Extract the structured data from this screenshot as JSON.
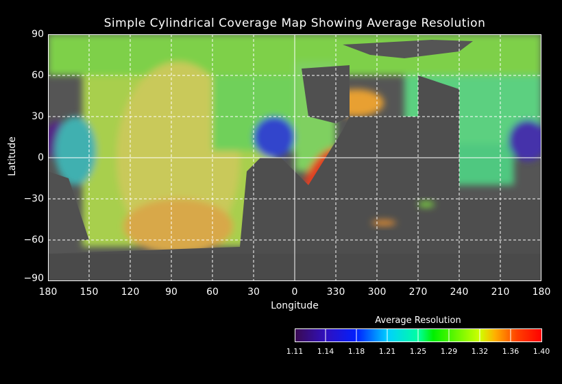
{
  "chart_data": {
    "type": "heatmap",
    "title": "Simple Cylindrical Coverage Map Showing Average Resolution",
    "xlabel": "Longitude",
    "ylabel": "Latitude",
    "x_ticks": [
      "180",
      "150",
      "120",
      "90",
      "60",
      "30",
      "0",
      "330",
      "300",
      "270",
      "240",
      "210",
      "180"
    ],
    "y_ticks": [
      "90",
      "60",
      "30",
      "0",
      "−30",
      "−60",
      "−90"
    ],
    "xlim": [
      180,
      -180
    ],
    "ylim": [
      -90,
      90
    ],
    "grid": true,
    "colorbar": {
      "title": "Average Resolution",
      "ticks": [
        "1.11",
        "1.14",
        "1.18",
        "1.21",
        "1.25",
        "1.29",
        "1.32",
        "1.36",
        "1.40"
      ],
      "range": [
        1.11,
        1.4
      ],
      "colors": [
        "#3a0a50",
        "#0000ff",
        "#00bfff",
        "#00ffc0",
        "#00ff00",
        "#a0ff00",
        "#ffff00",
        "#ff7f00",
        "#ff0000"
      ]
    }
  }
}
